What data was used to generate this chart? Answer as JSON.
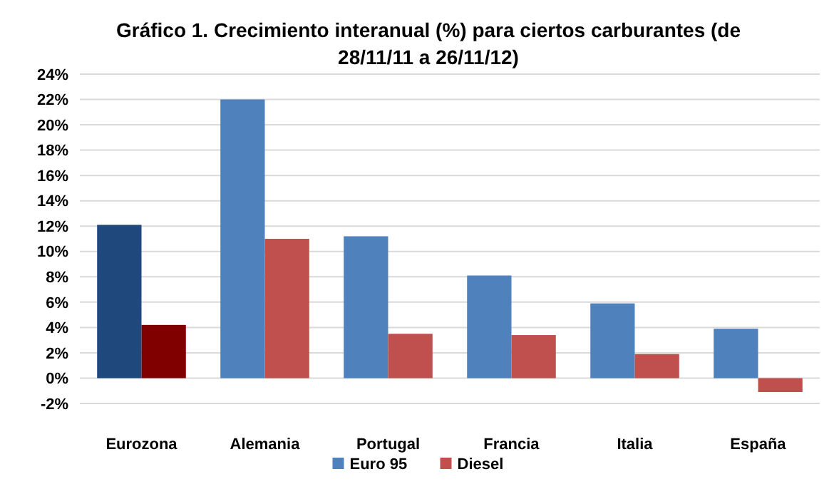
{
  "chart_data": {
    "type": "bar",
    "title": "Gráfico 1. Crecimiento interanual (%) para ciertos carburantes (de 28/11/11 a 26/11/12)",
    "categories": [
      "Eurozona",
      "Alemania",
      "Portugal",
      "Francia",
      "Italia",
      "España"
    ],
    "series": [
      {
        "name": "Euro 95",
        "color": "#4f81bd",
        "colors": [
          "#1f497d",
          "#4f81bd",
          "#4f81bd",
          "#4f81bd",
          "#4f81bd",
          "#4f81bd"
        ],
        "values": [
          12.1,
          22.0,
          11.2,
          8.1,
          5.9,
          3.9
        ]
      },
      {
        "name": "Diesel",
        "color": "#c0504d",
        "colors": [
          "#800000",
          "#c0504d",
          "#c0504d",
          "#c0504d",
          "#c0504d",
          "#c0504d"
        ],
        "values": [
          4.2,
          11.0,
          3.5,
          3.4,
          1.9,
          -1.1
        ]
      }
    ],
    "ylim": [
      -2,
      24
    ],
    "yticks": [
      {
        "value": -2,
        "label": "-2%"
      },
      {
        "value": 0,
        "label": "0%"
      },
      {
        "value": 2,
        "label": "2%"
      },
      {
        "value": 4,
        "label": "4%"
      },
      {
        "value": 6,
        "label": "6%"
      },
      {
        "value": 8,
        "label": "8%"
      },
      {
        "value": 10,
        "label": "10%"
      },
      {
        "value": 12,
        "label": "12%"
      },
      {
        "value": 14,
        "label": "14%"
      },
      {
        "value": 16,
        "label": "16%"
      },
      {
        "value": 18,
        "label": "18%"
      },
      {
        "value": 20,
        "label": "20%"
      },
      {
        "value": 22,
        "label": "22%"
      },
      {
        "value": 24,
        "label": "24%"
      }
    ],
    "grid": "y",
    "legend": "bottom"
  }
}
